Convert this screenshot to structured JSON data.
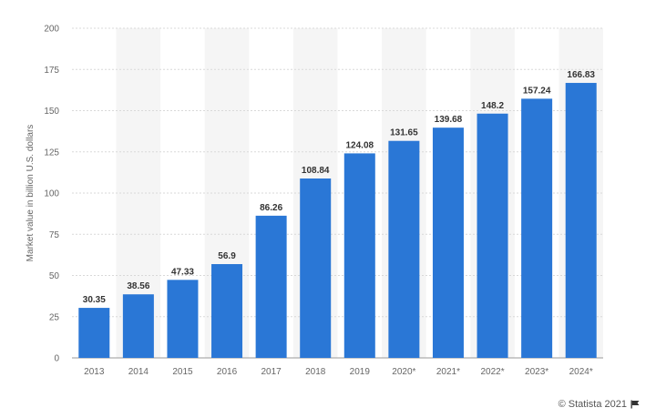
{
  "chart_data": {
    "type": "bar",
    "categories": [
      "2013",
      "2014",
      "2015",
      "2016",
      "2017",
      "2018",
      "2019",
      "2020*",
      "2021*",
      "2022*",
      "2023*",
      "2024*"
    ],
    "values": [
      30.35,
      38.56,
      47.33,
      56.9,
      86.26,
      108.84,
      124.08,
      131.65,
      139.68,
      148.2,
      157.24,
      166.83
    ],
    "data_labels": [
      "30.35",
      "38.56",
      "47.33",
      "56.9",
      "86.26",
      "108.84",
      "124.08",
      "131.65",
      "139.68",
      "148.2",
      "157.24",
      "166.83"
    ],
    "ylabel": "Market value in billion U.S. dollars",
    "xlabel": "",
    "ylim": [
      0,
      200
    ],
    "yticks": [
      0,
      25,
      50,
      75,
      100,
      125,
      150,
      175,
      200
    ],
    "grid": true,
    "legend": "none",
    "colors": {
      "bar": "#2a77d6",
      "band": "#f5f5f5",
      "grid": "#d9d9d9"
    }
  },
  "footer": {
    "credit": "© Statista 2021",
    "credit_icon": "flag-icon"
  }
}
